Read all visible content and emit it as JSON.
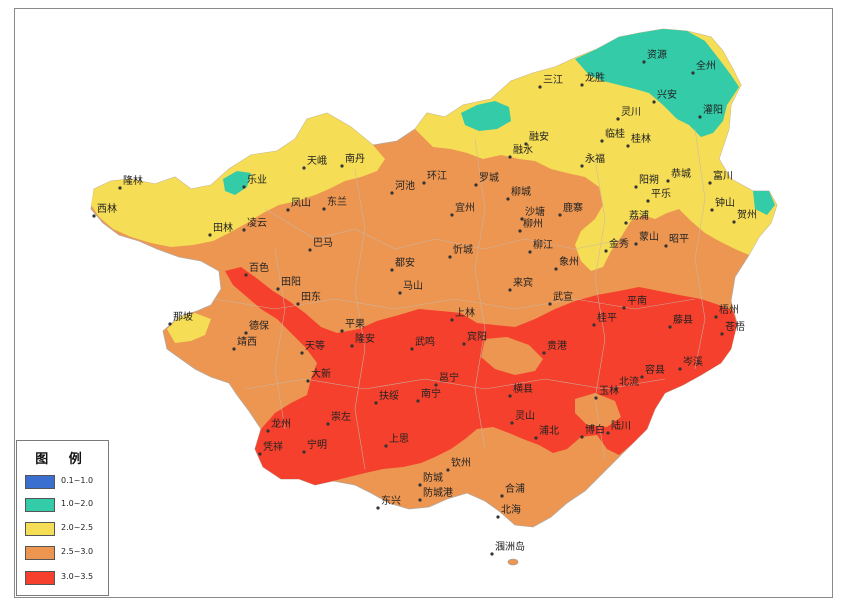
{
  "legend": {
    "title": "图 例",
    "items": [
      {
        "range": "0.1~1.0",
        "color": "#3a6fd0"
      },
      {
        "range": "1.0~2.0",
        "color": "#33cba8"
      },
      {
        "range": "2.0~2.5",
        "color": "#f5dd55"
      },
      {
        "range": "2.5~3.0",
        "color": "#ec9652"
      },
      {
        "range": "3.0~3.5",
        "color": "#f4402c"
      }
    ]
  },
  "cities": [
    "资源",
    "全州",
    "三江",
    "龙胜",
    "兴安",
    "灵川",
    "灌阳",
    "融安",
    "临桂",
    "桂林",
    "融水",
    "阳朔",
    "永福",
    "恭城",
    "富川",
    "钟山",
    "贺州",
    "天峨",
    "南丹",
    "河池",
    "环江",
    "罗城",
    "凤山",
    "东兰",
    "乐业",
    "凌云",
    "隆林",
    "西林",
    "田林",
    "巴马",
    "宜州",
    "柳城",
    "沙塘",
    "柳州",
    "鹿寨",
    "忻城",
    "柳江",
    "象州",
    "金秀",
    "蒙山",
    "昭平",
    "荔浦",
    "平乐",
    "百色",
    "都安",
    "马山",
    "来宾",
    "田阳",
    "田东",
    "武宣",
    "平南",
    "藤县",
    "梧州",
    "苍梧",
    "那坡",
    "德保",
    "靖西",
    "天等",
    "平果",
    "隆安",
    "上林",
    "武鸣",
    "宾阳",
    "贵港",
    "桂平",
    "容县",
    "岑溪",
    "北流",
    "玉林",
    "大新",
    "南宁",
    "邕宁",
    "横县",
    "灵山",
    "浦北",
    "博白",
    "陆川",
    "扶绥",
    "崇左",
    "龙州",
    "凭祥",
    "宁明",
    "上思",
    "钦州",
    "防城",
    "东兴",
    "防城港",
    "合浦",
    "北海",
    "涠洲岛"
  ]
}
